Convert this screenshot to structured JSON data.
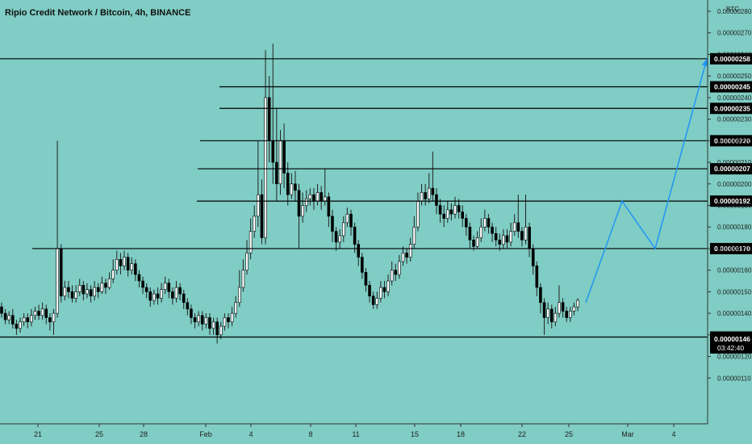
{
  "chart_data": {
    "type": "candlestick",
    "title": "Ripio Credit Network / Bitcoin, 4h, BINANCE",
    "unit": "BTC",
    "y_range": [
      1e-06,
      2.8e-06
    ],
    "y_ticks": [
      "0.00000110",
      "0.00000120",
      "0.00000130",
      "0.00000140",
      "0.00000150",
      "0.00000160",
      "0.00000170",
      "0.00000180",
      "0.00000190",
      "0.00000200",
      "0.00000210",
      "0.00000220",
      "0.00000230",
      "0.00000240",
      "0.00000250",
      "0.00000260",
      "0.00000270",
      "0.00000280"
    ],
    "x_ticks": [
      "21",
      "25",
      "28",
      "Feb",
      "4",
      "8",
      "11",
      "15",
      "18",
      "22",
      "25",
      "Mar",
      "4"
    ],
    "levels": [
      {
        "label": "0.00000258",
        "value": 2.58e-06
      },
      {
        "label": "0.00000245",
        "value": 2.45e-06
      },
      {
        "label": "0.00000235",
        "value": 2.35e-06
      },
      {
        "label": "0.00000220",
        "value": 2.2e-06
      },
      {
        "label": "0.00000207",
        "value": 2.07e-06
      },
      {
        "label": "0.00000192",
        "value": 1.92e-06
      },
      {
        "label": "0.00000170",
        "value": 1.7e-06
      },
      {
        "label": "0.00000129",
        "value": 1.29e-06
      }
    ],
    "last_price": {
      "label": "0.00000146",
      "countdown": "03:42:40",
      "value": 1.46e-06
    },
    "grid": false,
    "colors": {
      "background": "#7fcdc4",
      "up": "#ffffff",
      "down": "#000000",
      "wick": "#222222",
      "level": "#000000",
      "projection": "#2196f3"
    },
    "projection_path_prices": [
      1.45e-06,
      1.7e-06,
      1.92e-06,
      1.7e-06,
      2.58e-06
    ],
    "candles_ohlc": [
      [
        1.43,
        1.4,
        1.45,
        1.38
      ],
      [
        1.4,
        1.37,
        1.42,
        1.35
      ],
      [
        1.37,
        1.39,
        1.41,
        1.35
      ],
      [
        1.39,
        1.35,
        1.42,
        1.33
      ],
      [
        1.35,
        1.33,
        1.37,
        1.3
      ],
      [
        1.33,
        1.36,
        1.38,
        1.31
      ],
      [
        1.36,
        1.38,
        1.4,
        1.34
      ],
      [
        1.38,
        1.36,
        1.4,
        1.33
      ],
      [
        1.36,
        1.39,
        1.42,
        1.34
      ],
      [
        1.39,
        1.41,
        1.43,
        1.37
      ],
      [
        1.41,
        1.39,
        1.44,
        1.37
      ],
      [
        1.39,
        1.42,
        1.45,
        1.37
      ],
      [
        1.42,
        1.38,
        1.44,
        1.35
      ],
      [
        1.38,
        1.36,
        1.4,
        1.32
      ],
      [
        1.36,
        1.4,
        1.42,
        1.3
      ],
      [
        1.4,
        1.7,
        2.2,
        1.38
      ],
      [
        1.7,
        1.48,
        1.72,
        1.45
      ],
      [
        1.48,
        1.52,
        1.55,
        1.46
      ],
      [
        1.52,
        1.5,
        1.55,
        1.47
      ],
      [
        1.5,
        1.47,
        1.53,
        1.45
      ],
      [
        1.47,
        1.5,
        1.53,
        1.45
      ],
      [
        1.5,
        1.53,
        1.56,
        1.48
      ],
      [
        1.53,
        1.49,
        1.55,
        1.46
      ],
      [
        1.49,
        1.51,
        1.54,
        1.47
      ],
      [
        1.51,
        1.48,
        1.53,
        1.45
      ],
      [
        1.48,
        1.52,
        1.55,
        1.46
      ],
      [
        1.52,
        1.5,
        1.54,
        1.47
      ],
      [
        1.5,
        1.54,
        1.57,
        1.49
      ],
      [
        1.54,
        1.52,
        1.56,
        1.49
      ],
      [
        1.52,
        1.56,
        1.59,
        1.51
      ],
      [
        1.56,
        1.6,
        1.65,
        1.54
      ],
      [
        1.6,
        1.65,
        1.69,
        1.58
      ],
      [
        1.65,
        1.62,
        1.68,
        1.58
      ],
      [
        1.62,
        1.66,
        1.69,
        1.6
      ],
      [
        1.66,
        1.6,
        1.68,
        1.57
      ],
      [
        1.6,
        1.63,
        1.66,
        1.58
      ],
      [
        1.63,
        1.58,
        1.65,
        1.55
      ],
      [
        1.58,
        1.55,
        1.6,
        1.52
      ],
      [
        1.55,
        1.52,
        1.57,
        1.49
      ],
      [
        1.52,
        1.5,
        1.54,
        1.47
      ],
      [
        1.5,
        1.46,
        1.52,
        1.43
      ],
      [
        1.46,
        1.49,
        1.51,
        1.44
      ],
      [
        1.49,
        1.47,
        1.52,
        1.44
      ],
      [
        1.47,
        1.51,
        1.54,
        1.45
      ],
      [
        1.51,
        1.54,
        1.57,
        1.49
      ],
      [
        1.54,
        1.5,
        1.56,
        1.47
      ],
      [
        1.5,
        1.47,
        1.52,
        1.44
      ],
      [
        1.47,
        1.52,
        1.55,
        1.45
      ],
      [
        1.52,
        1.49,
        1.54,
        1.46
      ],
      [
        1.49,
        1.45,
        1.51,
        1.42
      ],
      [
        1.45,
        1.42,
        1.47,
        1.39
      ],
      [
        1.42,
        1.38,
        1.44,
        1.35
      ],
      [
        1.38,
        1.36,
        1.4,
        1.33
      ],
      [
        1.36,
        1.39,
        1.41,
        1.34
      ],
      [
        1.39,
        1.35,
        1.41,
        1.32
      ],
      [
        1.35,
        1.38,
        1.4,
        1.33
      ],
      [
        1.38,
        1.33,
        1.4,
        1.3
      ],
      [
        1.33,
        1.36,
        1.38,
        1.3
      ],
      [
        1.36,
        1.3,
        1.38,
        1.26
      ],
      [
        1.3,
        1.34,
        1.36,
        1.28
      ],
      [
        1.34,
        1.38,
        1.4,
        1.32
      ],
      [
        1.38,
        1.36,
        1.4,
        1.33
      ],
      [
        1.36,
        1.4,
        1.43,
        1.34
      ],
      [
        1.4,
        1.45,
        1.48,
        1.38
      ],
      [
        1.45,
        1.52,
        1.6,
        1.43
      ],
      [
        1.52,
        1.6,
        1.65,
        1.5
      ],
      [
        1.6,
        1.68,
        1.74,
        1.58
      ],
      [
        1.68,
        1.78,
        1.84,
        1.65
      ],
      [
        1.78,
        1.85,
        1.9,
        1.75
      ],
      [
        1.85,
        1.95,
        2.2,
        1.8
      ],
      [
        1.95,
        1.75,
        2.02,
        1.72
      ],
      [
        1.75,
        2.4,
        2.62,
        1.72
      ],
      [
        2.4,
        2.2,
        2.5,
        2.1
      ],
      [
        2.2,
        2.1,
        2.65,
        2.0
      ],
      [
        2.1,
        2.0,
        2.35,
        1.92
      ],
      [
        2.0,
        2.2,
        2.25,
        1.95
      ],
      [
        2.2,
        2.05,
        2.28,
        1.98
      ],
      [
        2.05,
        1.95,
        2.1,
        1.9
      ],
      [
        1.95,
        2.0,
        2.05,
        1.93
      ],
      [
        2.0,
        1.97,
        2.06,
        1.92
      ],
      [
        1.97,
        1.85,
        2.0,
        1.7
      ],
      [
        1.85,
        1.9,
        1.96,
        1.82
      ],
      [
        1.9,
        1.93,
        1.97,
        1.87
      ],
      [
        1.93,
        1.95,
        1.98,
        1.9
      ],
      [
        1.95,
        1.92,
        1.98,
        1.88
      ],
      [
        1.92,
        1.96,
        2.0,
        1.9
      ],
      [
        1.96,
        1.92,
        1.99,
        1.88
      ],
      [
        1.92,
        1.94,
        2.07,
        1.9
      ],
      [
        1.94,
        1.85,
        1.96,
        1.8
      ],
      [
        1.85,
        1.78,
        1.88,
        1.73
      ],
      [
        1.78,
        1.73,
        1.8,
        1.69
      ],
      [
        1.73,
        1.76,
        1.79,
        1.7
      ],
      [
        1.76,
        1.82,
        1.85,
        1.73
      ],
      [
        1.82,
        1.86,
        1.89,
        1.8
      ],
      [
        1.86,
        1.8,
        1.88,
        1.76
      ],
      [
        1.8,
        1.72,
        1.82,
        1.68
      ],
      [
        1.72,
        1.66,
        1.74,
        1.62
      ],
      [
        1.66,
        1.59,
        1.68,
        1.56
      ],
      [
        1.59,
        1.53,
        1.61,
        1.5
      ],
      [
        1.53,
        1.48,
        1.55,
        1.45
      ],
      [
        1.48,
        1.44,
        1.5,
        1.42
      ],
      [
        1.44,
        1.47,
        1.5,
        1.42
      ],
      [
        1.47,
        1.52,
        1.55,
        1.45
      ],
      [
        1.52,
        1.5,
        1.55,
        1.47
      ],
      [
        1.5,
        1.55,
        1.58,
        1.48
      ],
      [
        1.55,
        1.6,
        1.64,
        1.53
      ],
      [
        1.6,
        1.58,
        1.63,
        1.55
      ],
      [
        1.58,
        1.64,
        1.67,
        1.56
      ],
      [
        1.64,
        1.68,
        1.71,
        1.62
      ],
      [
        1.68,
        1.66,
        1.7,
        1.63
      ],
      [
        1.66,
        1.72,
        1.75,
        1.64
      ],
      [
        1.72,
        1.8,
        1.85,
        1.7
      ],
      [
        1.8,
        1.92,
        1.96,
        1.78
      ],
      [
        1.92,
        1.96,
        2.0,
        1.9
      ],
      [
        1.96,
        1.93,
        2.0,
        1.9
      ],
      [
        1.93,
        1.98,
        2.05,
        1.91
      ],
      [
        1.98,
        1.95,
        2.15,
        1.92
      ],
      [
        1.95,
        1.9,
        1.98,
        1.86
      ],
      [
        1.9,
        1.86,
        1.93,
        1.82
      ],
      [
        1.86,
        1.84,
        1.9,
        1.8
      ],
      [
        1.84,
        1.88,
        1.92,
        1.82
      ],
      [
        1.88,
        1.86,
        1.91,
        1.83
      ],
      [
        1.86,
        1.9,
        1.94,
        1.84
      ],
      [
        1.9,
        1.87,
        1.93,
        1.84
      ],
      [
        1.87,
        1.84,
        1.9,
        1.8
      ],
      [
        1.84,
        1.8,
        1.86,
        1.76
      ],
      [
        1.8,
        1.74,
        1.82,
        1.7
      ],
      [
        1.74,
        1.71,
        1.76,
        1.69
      ],
      [
        1.71,
        1.75,
        1.78,
        1.7
      ],
      [
        1.75,
        1.8,
        1.84,
        1.73
      ],
      [
        1.8,
        1.84,
        1.88,
        1.78
      ],
      [
        1.84,
        1.8,
        1.86,
        1.77
      ],
      [
        1.8,
        1.77,
        1.82,
        1.73
      ],
      [
        1.77,
        1.74,
        1.8,
        1.71
      ],
      [
        1.74,
        1.72,
        1.77,
        1.69
      ],
      [
        1.72,
        1.76,
        1.79,
        1.7
      ],
      [
        1.76,
        1.73,
        1.79,
        1.7
      ],
      [
        1.73,
        1.78,
        1.82,
        1.71
      ],
      [
        1.78,
        1.82,
        1.86,
        1.76
      ],
      [
        1.82,
        1.78,
        1.95,
        1.75
      ],
      [
        1.78,
        1.74,
        1.8,
        1.71
      ],
      [
        1.74,
        1.8,
        1.95,
        1.72
      ],
      [
        1.8,
        1.7,
        1.82,
        1.66
      ],
      [
        1.7,
        1.62,
        1.72,
        1.58
      ],
      [
        1.62,
        1.52,
        1.64,
        1.48
      ],
      [
        1.52,
        1.45,
        1.54,
        1.4
      ],
      [
        1.45,
        1.38,
        1.47,
        1.3
      ],
      [
        1.38,
        1.42,
        1.45,
        1.35
      ],
      [
        1.42,
        1.36,
        1.44,
        1.33
      ],
      [
        1.36,
        1.4,
        1.43,
        1.34
      ],
      [
        1.4,
        1.45,
        1.53,
        1.38
      ],
      [
        1.45,
        1.41,
        1.47,
        1.38
      ],
      [
        1.41,
        1.38,
        1.43,
        1.36
      ],
      [
        1.38,
        1.41,
        1.43,
        1.36
      ],
      [
        1.41,
        1.43,
        1.45,
        1.39
      ],
      [
        1.43,
        1.46,
        1.47,
        1.41
      ]
    ]
  }
}
